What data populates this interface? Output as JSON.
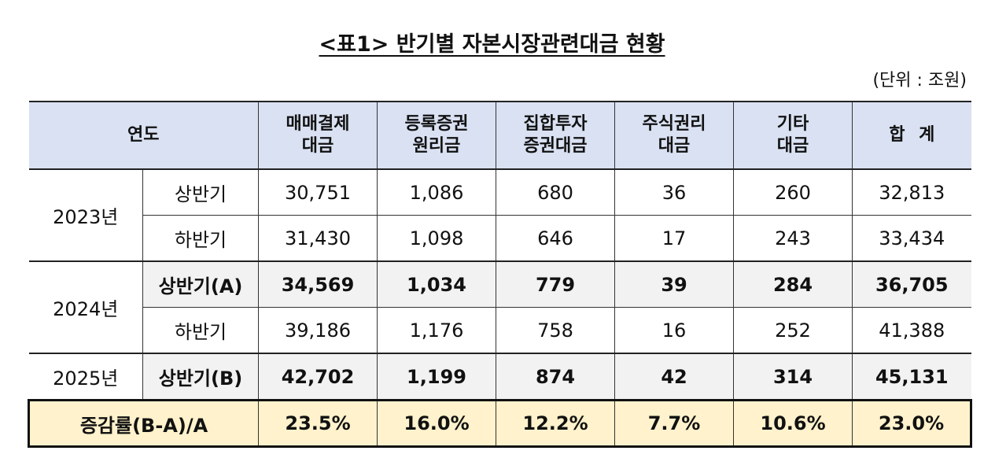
{
  "title": "<표1> 반기별 자본시장관련대금 현황",
  "unit": "(단위 : 조원)",
  "headers": {
    "period": "연도",
    "c1": [
      "매매결제",
      "대금"
    ],
    "c2": [
      "등록증권",
      "원리금"
    ],
    "c3": [
      "집합투자",
      "증권대금"
    ],
    "c4": [
      "주식권리",
      "대금"
    ],
    "c5": [
      "기타",
      "대금"
    ],
    "c6": "합 계"
  },
  "rows": [
    {
      "year": "2023년",
      "half": "상반기",
      "values": [
        "30,751",
        "1,086",
        "680",
        "36",
        "260",
        "32,813"
      ]
    },
    {
      "year": "",
      "half": "하반기",
      "values": [
        "31,430",
        "1,098",
        "646",
        "17",
        "243",
        "33,434"
      ]
    },
    {
      "year": "2024년",
      "half": "상반기(A)",
      "values": [
        "34,569",
        "1,034",
        "779",
        "39",
        "284",
        "36,705"
      ]
    },
    {
      "year": "",
      "half": "하반기",
      "values": [
        "39,186",
        "1,176",
        "758",
        "16",
        "252",
        "41,388"
      ]
    },
    {
      "year": "2025년",
      "half": "상반기(B)",
      "values": [
        "42,702",
        "1,199",
        "874",
        "42",
        "314",
        "45,131"
      ]
    }
  ],
  "summary": {
    "label": "증감률(B-A)/A",
    "values": [
      "23.5%",
      "16.0%",
      "12.2%",
      "7.7%",
      "10.6%",
      "23.0%"
    ]
  }
}
